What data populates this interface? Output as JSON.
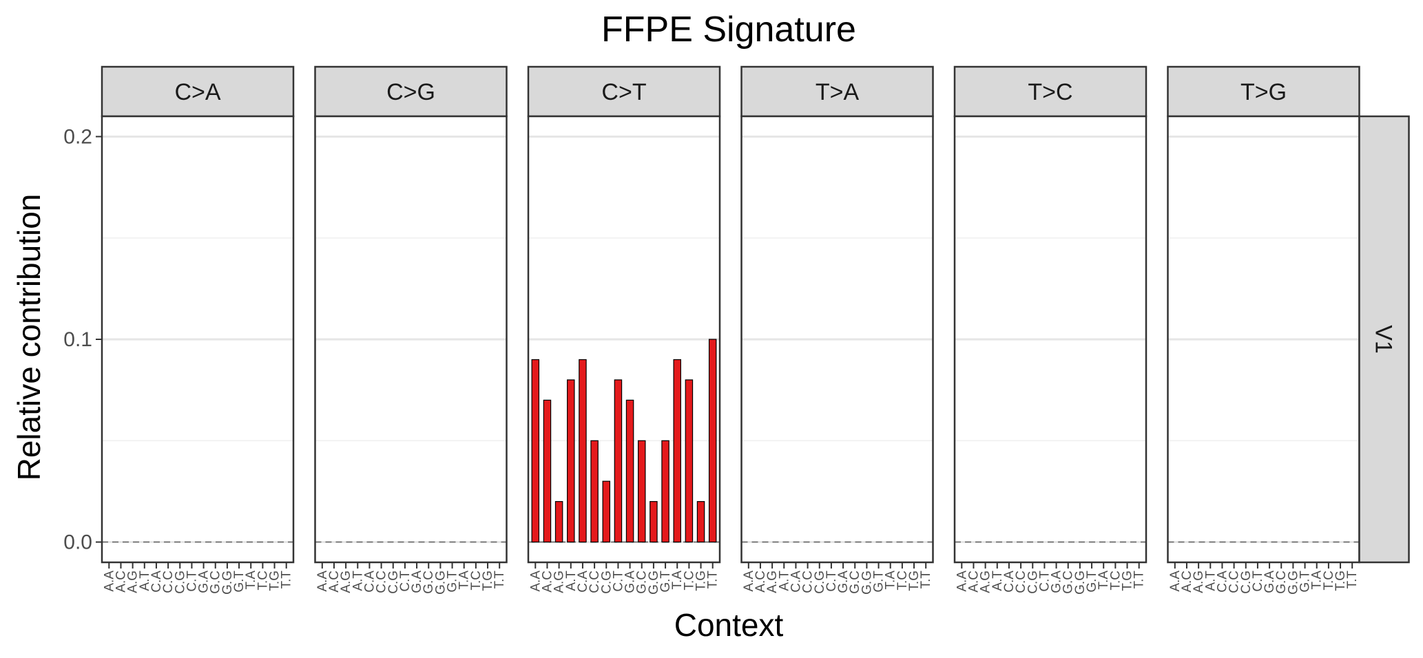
{
  "chart_data": {
    "type": "bar",
    "title": "FFPE Signature",
    "xlabel": "Context",
    "ylabel": "Relative contribution",
    "ylim": [
      -0.01,
      0.21
    ],
    "yticks": [
      0.0,
      0.1,
      0.2
    ],
    "ytick_labels": [
      "0.0",
      "0.1",
      "0.2"
    ],
    "grid": true,
    "bar_color": "#e41a1c",
    "bar_outline": "#000000",
    "row_strip": "V1",
    "contexts": [
      "A.A",
      "A.C",
      "A.G",
      "A.T",
      "C.A",
      "C.C",
      "C.G",
      "C.T",
      "G.A",
      "G.C",
      "G.G",
      "G.T",
      "T.A",
      "T.C",
      "T.G",
      "T.T"
    ],
    "panels": [
      {
        "label": "C>A",
        "values": [
          0,
          0,
          0,
          0,
          0,
          0,
          0,
          0,
          0,
          0,
          0,
          0,
          0,
          0,
          0,
          0
        ]
      },
      {
        "label": "C>G",
        "values": [
          0,
          0,
          0,
          0,
          0,
          0,
          0,
          0,
          0,
          0,
          0,
          0,
          0,
          0,
          0,
          0
        ]
      },
      {
        "label": "C>T",
        "values": [
          0.09,
          0.07,
          0.02,
          0.08,
          0.09,
          0.05,
          0.03,
          0.08,
          0.07,
          0.05,
          0.02,
          0.05,
          0.09,
          0.08,
          0.02,
          0.1
        ]
      },
      {
        "label": "T>A",
        "values": [
          0,
          0,
          0,
          0,
          0,
          0,
          0,
          0,
          0,
          0,
          0,
          0,
          0,
          0,
          0,
          0
        ]
      },
      {
        "label": "T>C",
        "values": [
          0,
          0,
          0,
          0,
          0,
          0,
          0,
          0,
          0,
          0,
          0,
          0,
          0,
          0,
          0,
          0
        ]
      },
      {
        "label": "T>G",
        "values": [
          0,
          0,
          0,
          0,
          0,
          0,
          0,
          0,
          0,
          0,
          0,
          0,
          0,
          0,
          0,
          0
        ]
      }
    ]
  }
}
